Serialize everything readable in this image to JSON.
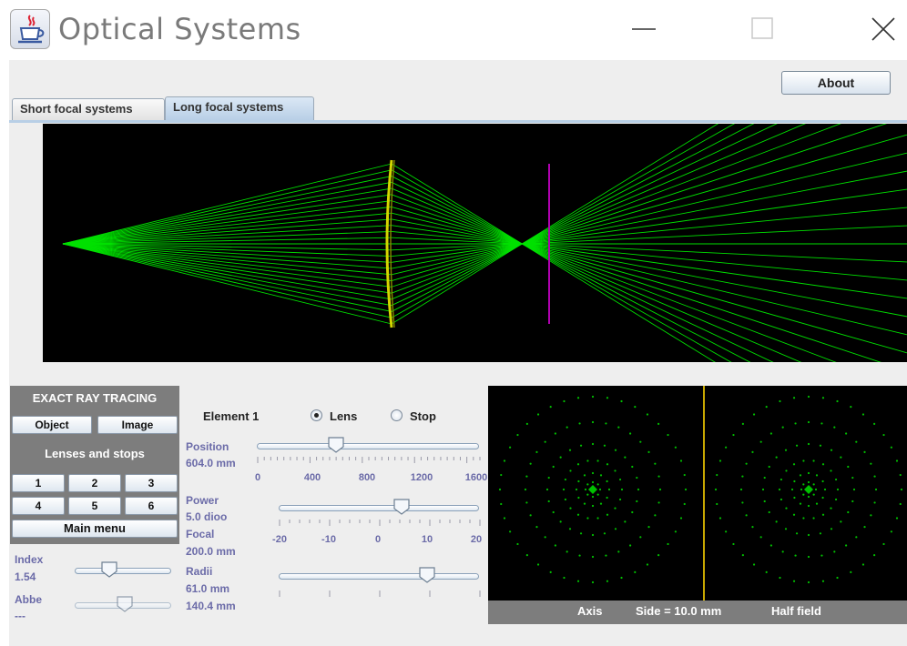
{
  "window": {
    "title": "Optical Systems"
  },
  "toolbar": {
    "about_label": "About"
  },
  "tabs": [
    {
      "label": "Short focal systems",
      "selected": false
    },
    {
      "label": "Long focal systems",
      "selected": true
    }
  ],
  "left_panel": {
    "exact_header": "EXACT RAY TRACING",
    "object_label": "Object",
    "image_label": "Image",
    "lenses_header": "Lenses and stops",
    "number_buttons": [
      "1",
      "2",
      "3",
      "4",
      "5",
      "6"
    ],
    "main_menu_label": "Main menu",
    "index_label": "Index",
    "index_value": "1.54",
    "abbe_label": "Abbe",
    "abbe_value": "---"
  },
  "element_panel": {
    "element_label": "Element 1",
    "lens_label": "Lens",
    "stop_label": "Stop",
    "lens_selected": true,
    "position_label": "Position",
    "position_value": "604.0 mm",
    "position_ticks": [
      "0",
      "400",
      "800",
      "1200",
      "1600"
    ],
    "position_slider": 604,
    "position_range": [
      0,
      1700
    ],
    "power_label": "Power",
    "power_value": "5.0 dioo",
    "focal_label": "Focal",
    "focal_value": "200.0 mm",
    "power_ticks": [
      "-20",
      "-10",
      "0",
      "10",
      "20"
    ],
    "power_slider": 5,
    "power_range": [
      -22,
      22
    ],
    "radii_label": "Radii",
    "radii_value1": "61.0 mm",
    "radii_value2": "140.4 mm",
    "radii_slider_fraction": 0.74,
    "index_slider_fraction": 0.36,
    "abbe_slider_fraction": 0.52
  },
  "spot_panel": {
    "axis_label": "Axis",
    "side_label": "Side = 10.0 mm",
    "half_field_label": "Half field"
  },
  "colors": {
    "rays": "#00e000",
    "lens": "#d4d400",
    "stop_line": "#b000b0",
    "spot_dots": "#00c000",
    "spot_divider": "#c8a800",
    "panel_gray": "#7d7d7d"
  },
  "icons": {
    "app": "java-cup-icon",
    "minimize": "minimize-icon",
    "maximize": "maximize-icon",
    "close": "close-icon"
  }
}
